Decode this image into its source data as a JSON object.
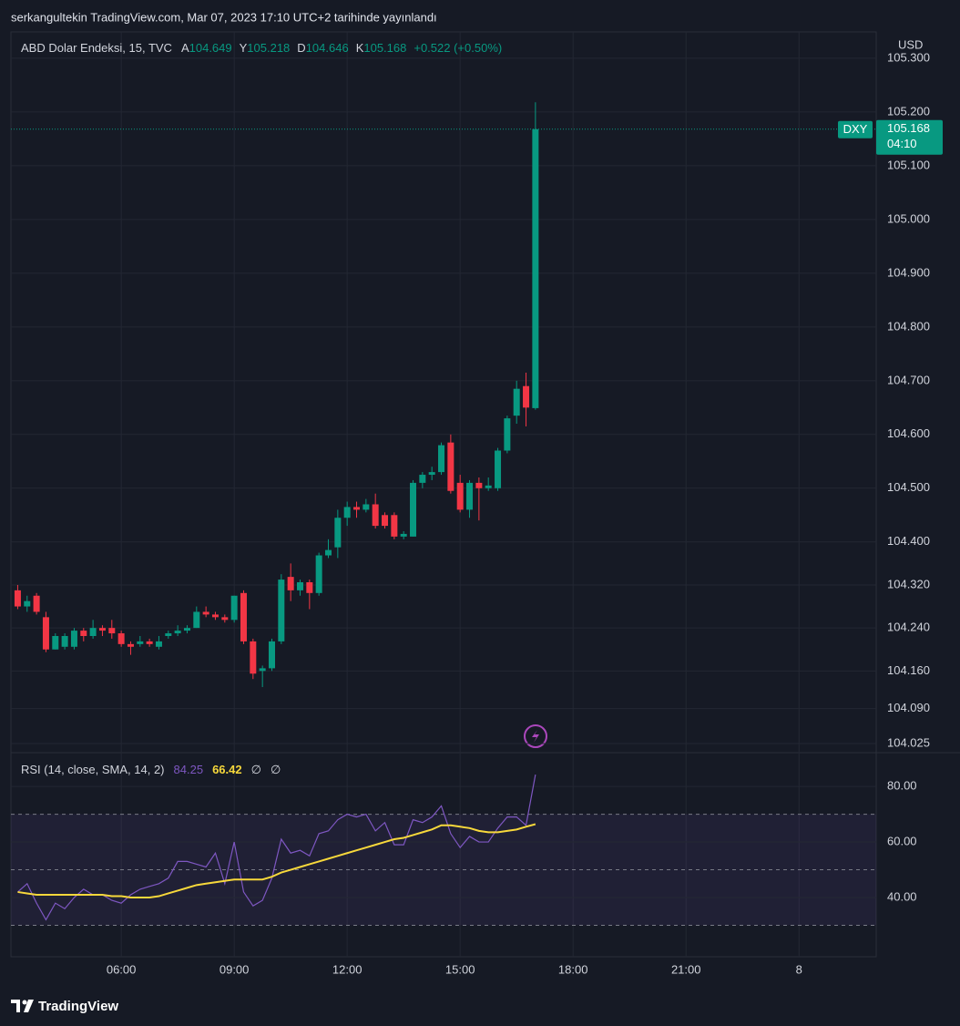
{
  "header": {
    "text": "serkangultekin TradingView.com, Mar 07, 2023 17:10 UTC+2 tarihinde yayınlandı"
  },
  "chart_data": [
    {
      "type": "candlestick",
      "title": "ABD Dolar Endeksi, 15, TVC",
      "legend": {
        "labels": [
          "A",
          "Y",
          "D",
          "K"
        ],
        "change": "+0.522 (+0.50%)"
      },
      "axis_unit": "USD",
      "symbol": "DXY",
      "countdown": "04:10",
      "up_color": "#089981",
      "down_color": "#f23645",
      "grid": true,
      "x": [
        3.25,
        3.5,
        3.75,
        4,
        4.25,
        4.5,
        4.75,
        5,
        5.25,
        5.5,
        5.75,
        6,
        6.25,
        6.5,
        6.75,
        7,
        7.25,
        7.5,
        7.75,
        8,
        8.25,
        8.5,
        8.75,
        9,
        9.25,
        9.5,
        9.75,
        10,
        10.25,
        10.5,
        10.75,
        11,
        11.25,
        11.5,
        11.75,
        12,
        12.25,
        12.5,
        12.75,
        13,
        13.25,
        13.5,
        13.75,
        14,
        14.25,
        14.5,
        14.75,
        15,
        15.25,
        15.5,
        15.75,
        16,
        16.25,
        16.5,
        16.75,
        17
      ],
      "open": [
        104.31,
        104.28,
        104.3,
        104.26,
        104.2,
        104.205,
        104.205,
        104.235,
        104.225,
        104.24,
        104.24,
        104.23,
        104.21,
        104.21,
        104.215,
        104.205,
        104.225,
        104.23,
        104.235,
        104.24,
        104.27,
        104.265,
        104.26,
        104.255,
        104.305,
        104.215,
        104.16,
        104.165,
        104.215,
        104.335,
        104.31,
        104.325,
        104.305,
        104.375,
        104.39,
        104.445,
        104.465,
        104.46,
        104.47,
        104.45,
        104.45,
        104.41,
        104.41,
        104.51,
        104.525,
        104.53,
        104.585,
        104.51,
        104.46,
        104.51,
        104.5,
        104.5,
        104.57,
        104.635,
        104.69,
        104.649
      ],
      "high": [
        104.32,
        104.3,
        104.305,
        104.27,
        104.23,
        104.23,
        104.24,
        104.24,
        104.255,
        104.245,
        104.255,
        104.235,
        104.215,
        104.225,
        104.22,
        104.225,
        104.235,
        104.245,
        104.245,
        104.28,
        104.28,
        104.27,
        104.265,
        104.3,
        104.31,
        104.22,
        104.17,
        104.22,
        104.34,
        104.36,
        104.33,
        104.33,
        104.38,
        104.405,
        104.46,
        104.475,
        104.475,
        104.48,
        104.49,
        104.455,
        104.455,
        104.42,
        104.515,
        104.53,
        104.54,
        104.585,
        104.6,
        104.525,
        104.515,
        104.52,
        104.52,
        104.575,
        104.635,
        104.7,
        104.715,
        105.218
      ],
      "low": [
        104.275,
        104.27,
        104.265,
        104.195,
        104.2,
        104.2,
        104.2,
        104.215,
        104.22,
        104.225,
        104.22,
        104.205,
        104.19,
        104.205,
        104.205,
        104.2,
        104.22,
        104.225,
        104.23,
        104.24,
        104.26,
        104.255,
        104.25,
        104.25,
        104.21,
        104.145,
        104.13,
        104.16,
        104.21,
        104.29,
        104.3,
        104.275,
        104.3,
        104.37,
        104.37,
        104.43,
        104.445,
        104.455,
        104.425,
        104.425,
        104.405,
        104.405,
        104.41,
        104.5,
        104.515,
        104.525,
        104.49,
        104.455,
        104.445,
        104.44,
        104.495,
        104.495,
        104.565,
        104.62,
        104.615,
        104.646
      ],
      "close": [
        104.28,
        104.29,
        104.27,
        104.2,
        104.225,
        104.225,
        104.235,
        104.225,
        104.24,
        104.235,
        104.23,
        104.21,
        104.205,
        104.215,
        104.21,
        104.215,
        104.23,
        104.235,
        104.24,
        104.27,
        104.265,
        104.26,
        104.255,
        104.3,
        104.215,
        104.155,
        104.165,
        104.215,
        104.33,
        104.31,
        104.325,
        104.305,
        104.375,
        104.385,
        104.445,
        104.465,
        104.46,
        104.47,
        104.43,
        104.43,
        104.41,
        104.415,
        104.51,
        104.525,
        104.53,
        104.58,
        104.495,
        104.46,
        104.51,
        104.5,
        104.505,
        104.57,
        104.63,
        104.685,
        104.65,
        105.168
      ],
      "xlim": [
        3.07,
        26.05
      ],
      "xticks": [
        {
          "value": 6,
          "label": "06:00"
        },
        {
          "value": 9,
          "label": "09:00"
        },
        {
          "value": 12,
          "label": "12:00"
        },
        {
          "value": 15,
          "label": "15:00"
        },
        {
          "value": 18,
          "label": "18:00"
        },
        {
          "value": 21,
          "label": "21:00"
        },
        {
          "value": 24,
          "label": "8"
        }
      ],
      "ylim": [
        104.008,
        105.349
      ],
      "yticks": [
        {
          "value": 104.025,
          "label": "104.025"
        },
        {
          "value": 104.09,
          "label": "104.090"
        },
        {
          "value": 104.16,
          "label": "104.160"
        },
        {
          "value": 104.24,
          "label": "104.240"
        },
        {
          "value": 104.32,
          "label": "104.320"
        },
        {
          "value": 104.4,
          "label": "104.400"
        },
        {
          "value": 104.5,
          "label": "104.500"
        },
        {
          "value": 104.6,
          "label": "104.600"
        },
        {
          "value": 104.7,
          "label": "104.700"
        },
        {
          "value": 104.8,
          "label": "104.800"
        },
        {
          "value": 104.9,
          "label": "104.900"
        },
        {
          "value": 105,
          "label": "105.000"
        },
        {
          "value": 105.1,
          "label": "105.100"
        },
        {
          "value": 105.2,
          "label": "105.200"
        },
        {
          "value": 105.3,
          "label": "105.300"
        }
      ]
    },
    {
      "type": "line",
      "title": "RSI (14, close, SMA, 14, 2)",
      "extra": [
        "∅",
        "∅"
      ],
      "levels": [
        70,
        50,
        30
      ],
      "band_color": "rgba(126,87,194,0.1)",
      "series": [
        {
          "color": "#7e57c2",
          "values": [
            42,
            45,
            38,
            32,
            38,
            36,
            40,
            43,
            41,
            41,
            39,
            38,
            41,
            43,
            44,
            45,
            47,
            53,
            53,
            52,
            51,
            56,
            45,
            60,
            42,
            37,
            39,
            47,
            61,
            56,
            57,
            55,
            63,
            64,
            68,
            70,
            69,
            70,
            64,
            67,
            59,
            59,
            68,
            67,
            69,
            73,
            63,
            58,
            62,
            60,
            60,
            65,
            69,
            69,
            66,
            84.25
          ]
        },
        {
          "color": "#f7d83b",
          "values": [
            42,
            41.5,
            41,
            41,
            41,
            41,
            41,
            41,
            41,
            41,
            40.5,
            40.5,
            40,
            40,
            40,
            40.5,
            41.5,
            42.5,
            43.5,
            44.5,
            45,
            45.5,
            46,
            46.5,
            46.5,
            46.5,
            46.5,
            47.5,
            49,
            50,
            51,
            52,
            53,
            54,
            55,
            56,
            57,
            58,
            59,
            60,
            61,
            61.5,
            62.5,
            63.5,
            64.5,
            66,
            66,
            65.5,
            65,
            64,
            63.5,
            63.5,
            64,
            64.5,
            65.5,
            66.42
          ]
        }
      ],
      "ylim": [
        18.7,
        91.5
      ],
      "yticks": [
        {
          "value": 40,
          "label": "40.00"
        },
        {
          "value": 60,
          "label": "60.00"
        },
        {
          "value": 80,
          "label": "80.00"
        }
      ]
    }
  ],
  "footer": {
    "brand": "TradingView"
  }
}
